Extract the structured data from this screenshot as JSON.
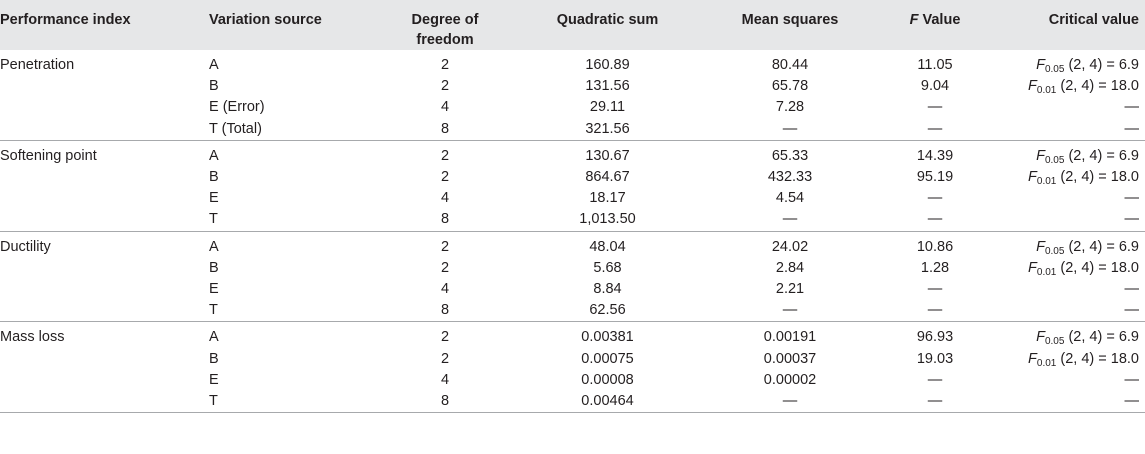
{
  "headers": {
    "performance_index": "Performance index",
    "variation_source": "Variation source",
    "degree_of_freedom_line1": "Degree of",
    "degree_of_freedom_line2": "freedom",
    "quadratic_sum": "Quadratic sum",
    "mean_squares": "Mean squares",
    "f_value_symbol": "F",
    "f_value_label": " Value",
    "critical_value": "Critical value"
  },
  "groups": [
    {
      "name": "Penetration",
      "rows": [
        {
          "source": "A",
          "df": "2",
          "qs": "160.89",
          "ms": "80.44",
          "f": "11.05",
          "crit": {
            "sym": "F",
            "sub": "0.05",
            "text": " (2, 4) = 6.9"
          }
        },
        {
          "source": "B",
          "df": "2",
          "qs": "131.56",
          "ms": "65.78",
          "f": "9.04",
          "crit": {
            "sym": "F",
            "sub": "0.01",
            "text": " (2, 4) = 18.0"
          }
        },
        {
          "source": "E (Error)",
          "df": "4",
          "qs": "29.11",
          "ms": "7.28",
          "f": "—",
          "crit": {
            "text": "—"
          }
        },
        {
          "source": "T (Total)",
          "df": "8",
          "qs": "321.56",
          "ms": "—",
          "f": "—",
          "crit": {
            "text": "—"
          }
        }
      ]
    },
    {
      "name": "Softening point",
      "rows": [
        {
          "source": "A",
          "df": "2",
          "qs": "130.67",
          "ms": "65.33",
          "f": "14.39",
          "crit": {
            "sym": "F",
            "sub": "0.05",
            "text": " (2, 4) = 6.9"
          }
        },
        {
          "source": "B",
          "df": "2",
          "qs": "864.67",
          "ms": "432.33",
          "f": "95.19",
          "crit": {
            "sym": "F",
            "sub": "0.01",
            "text": " (2, 4) = 18.0"
          }
        },
        {
          "source": "E",
          "df": "4",
          "qs": "18.17",
          "ms": "4.54",
          "f": "—",
          "crit": {
            "text": "—"
          }
        },
        {
          "source": "T",
          "df": "8",
          "qs": "1,013.50",
          "ms": "—",
          "f": "—",
          "crit": {
            "text": "—"
          }
        }
      ]
    },
    {
      "name": "Ductility",
      "rows": [
        {
          "source": "A",
          "df": "2",
          "qs": "48.04",
          "ms": "24.02",
          "f": "10.86",
          "crit": {
            "sym": "F",
            "sub": "0.05",
            "text": " (2, 4) = 6.9"
          }
        },
        {
          "source": "B",
          "df": "2",
          "qs": "5.68",
          "ms": "2.84",
          "f": "1.28",
          "crit": {
            "sym": "F",
            "sub": "0.01",
            "text": " (2, 4) = 18.0"
          }
        },
        {
          "source": "E",
          "df": "4",
          "qs": "8.84",
          "ms": "2.21",
          "f": "—",
          "crit": {
            "text": "—"
          }
        },
        {
          "source": "T",
          "df": "8",
          "qs": "62.56",
          "ms": "—",
          "f": "—",
          "crit": {
            "text": "—"
          }
        }
      ]
    },
    {
      "name": "Mass loss",
      "rows": [
        {
          "source": "A",
          "df": "2",
          "qs": "0.00381",
          "ms": "0.00191",
          "f": "96.93",
          "crit": {
            "sym": "F",
            "sub": "0.05",
            "text": " (2, 4) = 6.9"
          }
        },
        {
          "source": "B",
          "df": "2",
          "qs": "0.00075",
          "ms": "0.00037",
          "f": "19.03",
          "crit": {
            "sym": "F",
            "sub": "0.01",
            "text": " (2, 4) = 18.0"
          }
        },
        {
          "source": "E",
          "df": "4",
          "qs": "0.00008",
          "ms": "0.00002",
          "f": "—",
          "crit": {
            "text": "—"
          }
        },
        {
          "source": "T",
          "df": "8",
          "qs": "0.00464",
          "ms": "—",
          "f": "—",
          "crit": {
            "text": "—"
          }
        }
      ]
    }
  ],
  "colors": {
    "header_background": "#e6e7e8",
    "text": "#231f20",
    "rule": "#a7a9ac"
  }
}
